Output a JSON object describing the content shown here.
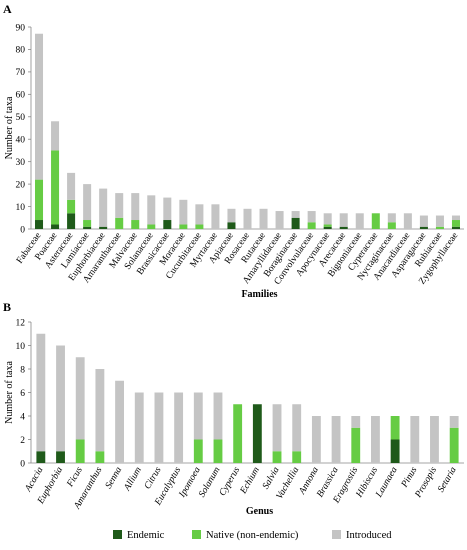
{
  "colors": {
    "endemic": "#1f5a1a",
    "native": "#66cc44",
    "introduced": "#c4c4c4",
    "axis": "#888888"
  },
  "legend": {
    "items": [
      {
        "name": "Endemic",
        "color_key": "endemic"
      },
      {
        "name": "Native (non-endemic)",
        "color_key": "native"
      },
      {
        "name": "Introduced",
        "color_key": "introduced"
      }
    ]
  },
  "chart_data": [
    {
      "panel": "A",
      "type": "bar",
      "stacked": true,
      "ylabel": "Number of taxa",
      "xlabel": "Families",
      "ylim": [
        0,
        90
      ],
      "yticks": [
        0,
        10,
        20,
        30,
        40,
        50,
        60,
        70,
        80,
        90
      ],
      "categories": [
        "Fabaceae",
        "Poaceae",
        "Asteraceae",
        "Lamiaceae",
        "Euphorbiaceae",
        "Amaranthaceae",
        "Malvaceae",
        "Solanaceae",
        "Brassicaceae",
        "Moraceae",
        "Cucurbitaceae",
        "Myrtaceae",
        "Apiaceae",
        "Rosaceae",
        "Rutaceae",
        "Amaryllidaceae",
        "Boraginaceae",
        "Convolvulaceae",
        "Apocynaceae",
        "Arecaceae",
        "Bignoniaceae",
        "Cyperaceae",
        "Nyctaginaceae",
        "Anacardiaceae",
        "Asparagaceae",
        "Rubiaceae",
        "Zygophyllaceae"
      ],
      "italic_categories": false,
      "series": [
        {
          "name": "Endemic",
          "values": [
            4,
            2,
            7,
            1,
            1,
            0,
            0,
            0,
            4,
            0,
            0,
            0,
            3,
            0,
            0,
            0,
            5,
            0,
            1,
            1,
            0,
            0,
            0,
            0,
            1,
            0,
            1
          ]
        },
        {
          "name": "Native (non-endemic)",
          "values": [
            18,
            33,
            6,
            3,
            0,
            5,
            4,
            2,
            0,
            2,
            2,
            0,
            0,
            0,
            0,
            0,
            0,
            3,
            1,
            0,
            0,
            7,
            3,
            0,
            0,
            1,
            3
          ]
        },
        {
          "name": "Introduced",
          "values": [
            65,
            13,
            12,
            16,
            17,
            11,
            12,
            13,
            10,
            11,
            9,
            11,
            6,
            9,
            9,
            8,
            3,
            5,
            5,
            6,
            7,
            0,
            4,
            7,
            5,
            5,
            2
          ]
        }
      ]
    },
    {
      "panel": "B",
      "type": "bar",
      "stacked": true,
      "ylabel": "Number of taxa",
      "xlabel": "Genus",
      "ylim": [
        0,
        12
      ],
      "yticks": [
        0,
        2,
        4,
        6,
        8,
        10,
        12
      ],
      "categories": [
        "Acacia",
        "Euphorbia",
        "Ficus",
        "Amaranthus",
        "Senna",
        "Allium",
        "Citrus",
        "Eucalyptus",
        "Ipomoea",
        "Solanum",
        "Cyperus",
        "Echium",
        "Salvia",
        "Vachellia",
        "Annona",
        "Brassica",
        "Eragrostis",
        "Hibiscus",
        "Launaea",
        "Pinus",
        "Prosopis",
        "Setaria"
      ],
      "italic_categories": true,
      "series": [
        {
          "name": "Endemic",
          "values": [
            1,
            1,
            0,
            0,
            0,
            0,
            0,
            0,
            0,
            0,
            0,
            5,
            0,
            0,
            0,
            0,
            0,
            0,
            2,
            0,
            0,
            0
          ]
        },
        {
          "name": "Native (non-endemic)",
          "values": [
            0,
            0,
            2,
            1,
            0,
            0,
            0,
            0,
            2,
            2,
            5,
            0,
            1,
            1,
            0,
            0,
            3,
            0,
            2,
            0,
            0,
            3
          ]
        },
        {
          "name": "Introduced",
          "values": [
            10,
            9,
            7,
            7,
            7,
            6,
            6,
            6,
            4,
            4,
            0,
            0,
            4,
            4,
            4,
            4,
            1,
            4,
            0,
            4,
            4,
            1
          ]
        }
      ]
    }
  ]
}
